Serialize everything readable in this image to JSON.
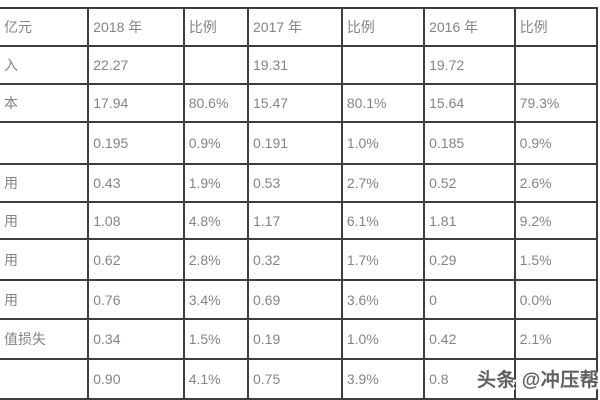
{
  "table": {
    "columns": [
      "亿元",
      "2018 年",
      "比例",
      "2017 年",
      "比例",
      "2016 年",
      "比例"
    ],
    "rows": [
      [
        "入",
        "22.27",
        "",
        "19.31",
        "",
        "19.72",
        ""
      ],
      [
        "本",
        "17.94",
        "80.6%",
        "15.47",
        "80.1%",
        "15.64",
        "79.3%"
      ],
      [
        "",
        "0.195",
        "0.9%",
        "0.191",
        "1.0%",
        "0.185",
        "0.9%"
      ],
      [
        "用",
        "0.43",
        "1.9%",
        "0.53",
        "2.7%",
        "0.52",
        "2.6%"
      ],
      [
        "用",
        "1.08",
        "4.8%",
        "1.17",
        "6.1%",
        "1.81",
        "9.2%"
      ],
      [
        "用",
        "0.62",
        "2.8%",
        "0.32",
        "1.7%",
        "0.29",
        "1.5%"
      ],
      [
        "用",
        "0.76",
        "3.4%",
        "0.69",
        "3.6%",
        "0",
        "0.0%"
      ],
      [
        "值损失",
        "0.34",
        "1.5%",
        "0.19",
        "1.0%",
        "0.42",
        "2.1%"
      ],
      [
        "",
        "0.90",
        "4.1%",
        "0.75",
        "3.9%",
        "0.8",
        ""
      ]
    ]
  },
  "watermark": {
    "text": "头条 @冲压帮F"
  },
  "colors": {
    "background": "#ffffff",
    "border": "#3d3d3d",
    "text": "#848484",
    "watermark": "#525252"
  }
}
